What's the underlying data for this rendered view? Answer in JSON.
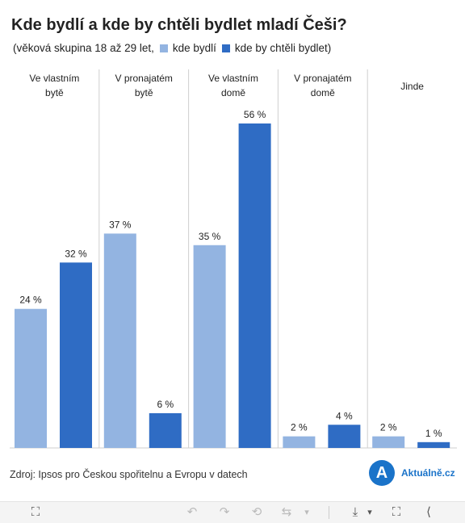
{
  "title": "Kde bydlí a kde by chtěli bydlet mladí Češi?",
  "subtitle": {
    "prefix": "(věková skupina 18 až 29 let,",
    "legend_1": "kde bydlí",
    "legend_2": "kde by chtěli bydlet)"
  },
  "colors": {
    "series_1": "#93b4e1",
    "series_2": "#2f6cc4",
    "divider": "#cfcfcf",
    "brand": "#1a73c9"
  },
  "chart_data": {
    "type": "bar",
    "categories": [
      "Ve vlastním bytě",
      "V pronajatém bytě",
      "Ve vlastním domě",
      "V pronajatém domě",
      "Jinde"
    ],
    "series": [
      {
        "name": "kde bydlí",
        "values": [
          24,
          37,
          35,
          2,
          2
        ]
      },
      {
        "name": "kde by chtěli bydlet",
        "values": [
          32,
          6,
          56,
          4,
          1
        ]
      }
    ],
    "value_suffix": " %",
    "ylim": [
      0,
      60
    ],
    "grid": false,
    "legend_placement": "subtitle"
  },
  "source": "Zdroj: Ipsos pro Českou spořitelnu a Evropu v datech",
  "logo": {
    "letter": "A",
    "brand": "Aktuálně.cz"
  },
  "toolbar": {
    "move_icon": "⛶",
    "undo_icon": "↶",
    "redo_icon": "↷",
    "revert_icon": "⟲",
    "refresh_icon": "⇆",
    "dropdown_icon": "▾",
    "download_icon": "⤓",
    "fullscreen_icon": "⛶",
    "share_icon": "⟨"
  }
}
